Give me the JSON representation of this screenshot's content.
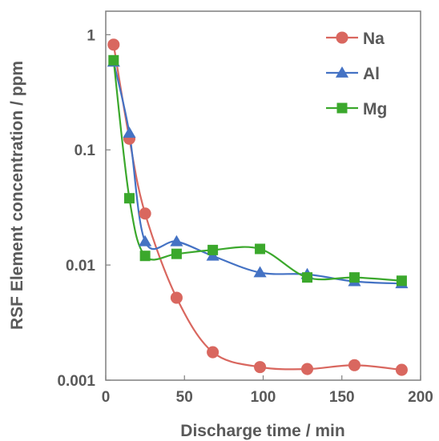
{
  "chart_data": {
    "type": "scatter",
    "xlabel": "Discharge time / min",
    "ylabel": "RSF Element concentration / ppm",
    "xlim": [
      0,
      200
    ],
    "ylim": [
      0.001,
      1.6
    ],
    "yscale": "log",
    "xticks": [
      0,
      50,
      100,
      150,
      200
    ],
    "xtick_labels": [
      "0",
      "50",
      "100",
      "150",
      "200"
    ],
    "yticks": [
      0.001,
      0.01,
      0.1,
      1
    ],
    "ytick_labels": [
      "0.001",
      "0.01",
      "0.1",
      "1"
    ],
    "grid": false,
    "legend_position": "top-right",
    "series": [
      {
        "name": "Na",
        "marker": "circle",
        "color": "#d9675f",
        "x": [
          5,
          15,
          25,
          45,
          68,
          98,
          128,
          158,
          188
        ],
        "y": [
          0.82,
          0.125,
          0.028,
          0.0052,
          0.00175,
          0.0013,
          0.00125,
          0.00135,
          0.00123
        ]
      },
      {
        "name": "Al",
        "marker": "triangle",
        "color": "#4472c4",
        "x": [
          5,
          15,
          25,
          45,
          68,
          98,
          128,
          158,
          188
        ],
        "y": [
          0.58,
          0.14,
          0.016,
          0.016,
          0.012,
          0.0086,
          0.0083,
          0.0072,
          0.0069
        ]
      },
      {
        "name": "Mg",
        "marker": "square",
        "color": "#3ba82c",
        "x": [
          5,
          15,
          25,
          45,
          68,
          98,
          128,
          158,
          188
        ],
        "y": [
          0.6,
          0.038,
          0.012,
          0.0125,
          0.0135,
          0.0138,
          0.0078,
          0.0078,
          0.0073
        ]
      }
    ]
  }
}
